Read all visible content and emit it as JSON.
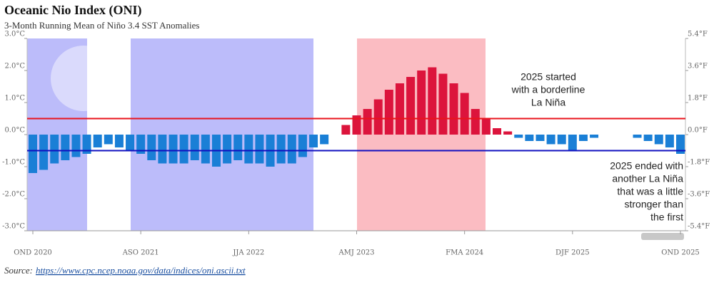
{
  "chart_data": {
    "type": "bar",
    "title": "Oceanic Nio Index (ONI)",
    "subtitle": "3-Month Running Mean of Niño 3.4 SST Anomalies",
    "source_label": "Source:",
    "source_url": "https://www.cpc.ncep.noaa.gov/data/indices/oni.ascii.txt",
    "categories": [
      "OND 2020",
      null,
      null,
      null,
      null,
      null,
      null,
      null,
      null,
      null,
      "ASO 2021",
      null,
      null,
      null,
      null,
      null,
      null,
      null,
      null,
      null,
      "JJA 2022",
      null,
      null,
      null,
      null,
      null,
      null,
      null,
      null,
      null,
      "AMJ 2023",
      null,
      null,
      null,
      null,
      null,
      null,
      null,
      null,
      null,
      "FMA 2024",
      null,
      null,
      null,
      null,
      null,
      null,
      null,
      null,
      null,
      "DJF 2025",
      null,
      null,
      null,
      null,
      null,
      null,
      null,
      null,
      null,
      "OND 2025"
    ],
    "values": [
      -1.2,
      -1.1,
      -0.9,
      -0.8,
      -0.7,
      -0.6,
      -0.4,
      -0.3,
      -0.4,
      -0.5,
      -0.6,
      -0.8,
      -0.9,
      -0.9,
      -0.9,
      -0.8,
      -0.9,
      -1.0,
      -0.9,
      -0.8,
      -0.9,
      -0.9,
      -1.0,
      -0.9,
      -0.9,
      -0.7,
      -0.4,
      -0.3,
      0,
      0.3,
      0.6,
      0.8,
      1.1,
      1.4,
      1.6,
      1.8,
      2.0,
      2.1,
      1.9,
      1.6,
      1.3,
      0.8,
      0.5,
      0.2,
      0.1,
      -0.1,
      -0.2,
      -0.2,
      -0.3,
      -0.3,
      -0.5,
      -0.2,
      -0.1,
      0,
      0,
      0,
      -0.1,
      -0.2,
      -0.3,
      -0.4,
      -0.6
    ],
    "positive_color": "#dc143c",
    "negative_color": "#1a7fd6",
    "ylim": [
      -3,
      3
    ],
    "yticks": [
      {
        "value": 3,
        "label": "3.0°C"
      },
      {
        "value": 2,
        "label": "2.0°C"
      },
      {
        "value": 1,
        "label": "1.0°C"
      },
      {
        "value": 0,
        "label": "0.0°C"
      },
      {
        "value": -1,
        "label": "-1.0°C"
      },
      {
        "value": -2,
        "label": "-2.0°C"
      },
      {
        "value": -3,
        "label": "-3.0°C"
      }
    ],
    "y2lim": [
      -5.4,
      5.4
    ],
    "y2ticks": [
      {
        "value": 5.4,
        "label": "5.4°F"
      },
      {
        "value": 3.6,
        "label": "3.6°F"
      },
      {
        "value": 1.8,
        "label": "1.8°F"
      },
      {
        "value": 0,
        "label": "0.0°F"
      },
      {
        "value": -1.8,
        "label": "-1.8°F"
      },
      {
        "value": -3.6,
        "label": "-3.6°F"
      },
      {
        "value": -5.4,
        "label": "-5.4°F"
      }
    ],
    "thresholds": [
      {
        "value": 0.5,
        "color": "#e8141c"
      },
      {
        "value": -0.5,
        "color": "#1010c0"
      }
    ],
    "annotations": [
      {
        "lines": [
          "2025 started",
          "with a borderline",
          "La Niña"
        ]
      },
      {
        "lines": [
          "2025 ended with",
          "another La Niña",
          "that was a little",
          "stronger than",
          "the first"
        ]
      }
    ]
  }
}
